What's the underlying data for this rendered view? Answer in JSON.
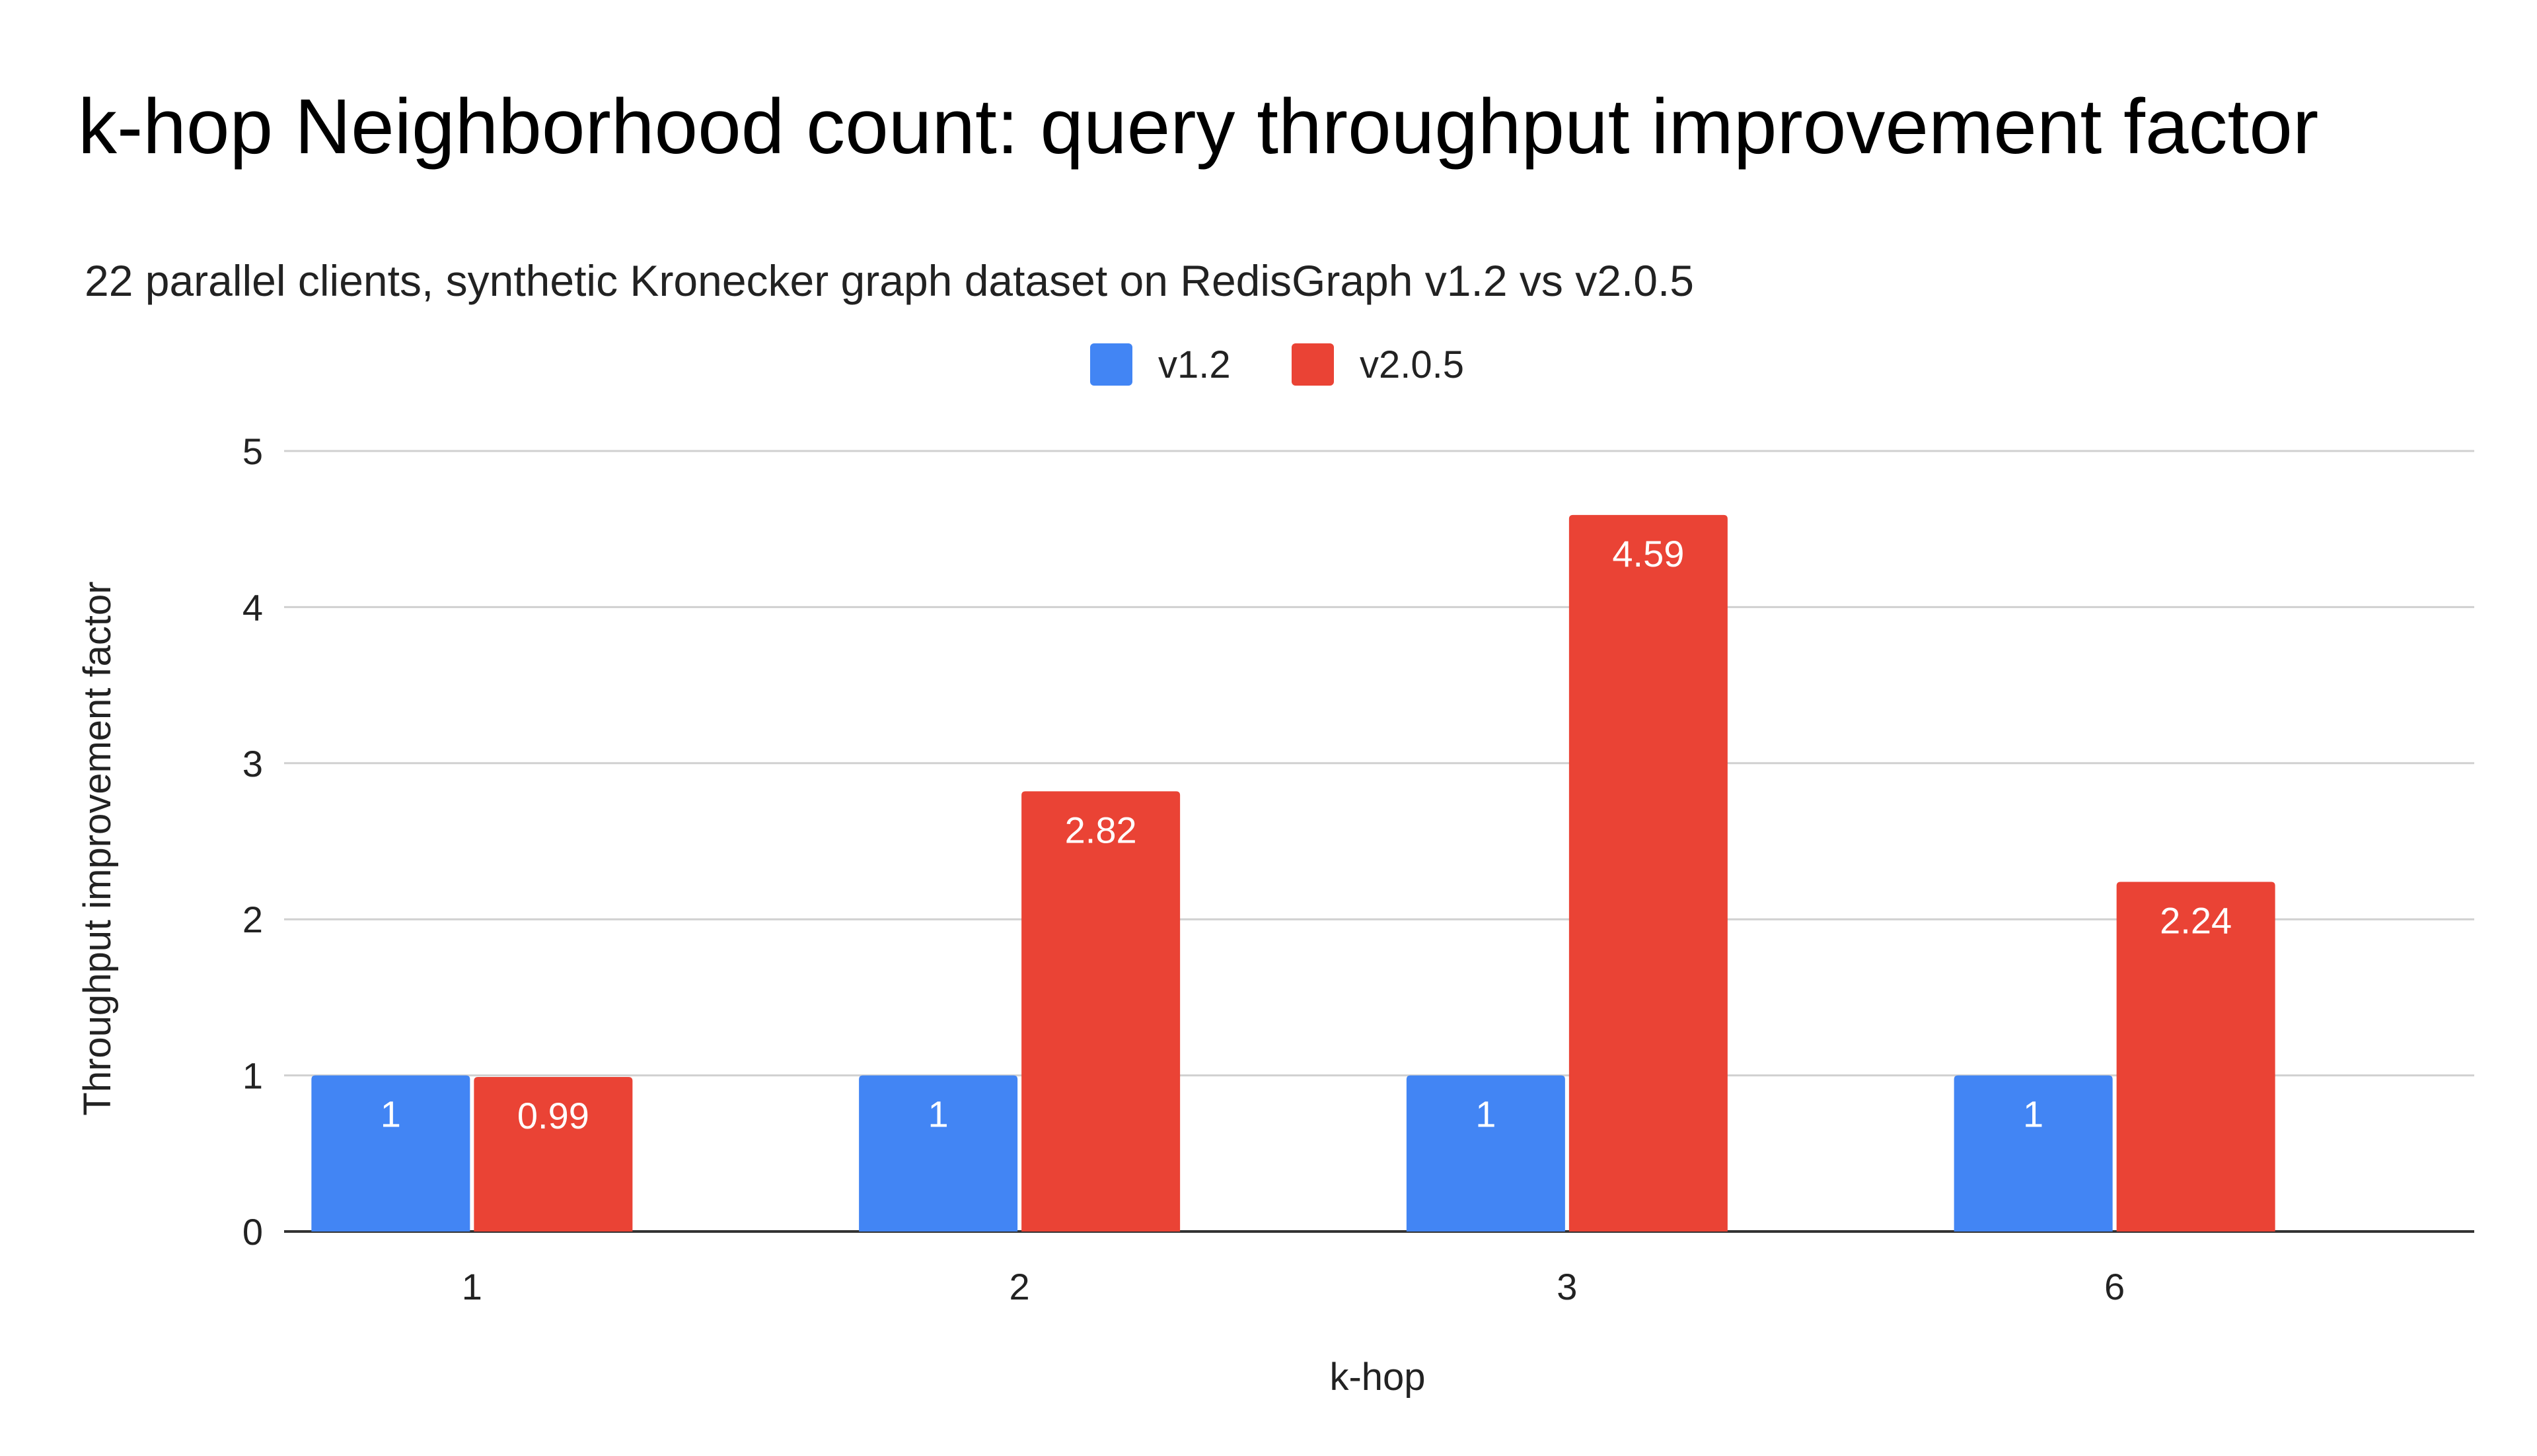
{
  "chart_data": {
    "type": "bar",
    "title": "k-hop Neighborhood count: query throughput improvement factor",
    "subtitle": "22 parallel clients, synthetic Kronecker graph dataset on RedisGraph v1.2 vs v2.0.5",
    "xlabel": "k-hop",
    "ylabel": "Throughput improvement factor",
    "categories": [
      "1",
      "2",
      "3",
      "6"
    ],
    "series": [
      {
        "name": "v1.2",
        "color": "#4285F4",
        "values": [
          1,
          1,
          1,
          1
        ],
        "labels": [
          "1",
          "1",
          "1",
          "1"
        ]
      },
      {
        "name": "v2.0.5",
        "color": "#EA4335",
        "values": [
          0.99,
          2.82,
          4.59,
          2.24
        ],
        "labels": [
          "0.99",
          "2.82",
          "4.59",
          "2.24"
        ]
      }
    ],
    "ylim": [
      0,
      5
    ],
    "yticks": [
      "0",
      "1",
      "2",
      "3",
      "4",
      "5"
    ],
    "grid": true,
    "legend_position": "top-center"
  }
}
